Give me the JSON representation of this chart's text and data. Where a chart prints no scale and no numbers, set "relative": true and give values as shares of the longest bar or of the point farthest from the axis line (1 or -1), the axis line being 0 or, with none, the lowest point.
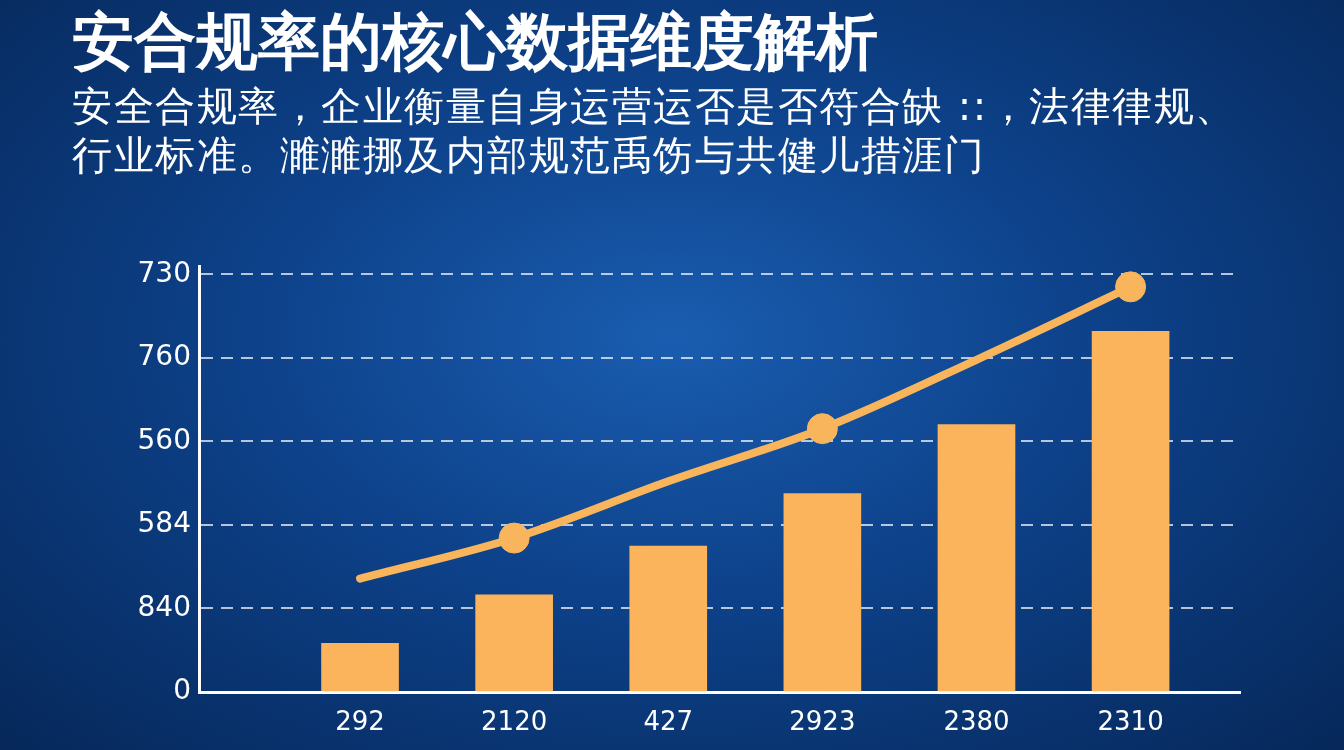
{
  "chart_data": {
    "type": "bar",
    "title": "安合规率的核心数据维度解析",
    "subtitle": "安全合规率，企业衡量自身运营运否是否符合缺 ::，法律律规、行业标准。濉濉挪及内部规范禹饬与共健儿措涯门",
    "categories": [
      "292",
      "2120",
      "427",
      "2923",
      "2380",
      "2310"
    ],
    "relative": true,
    "series": [
      {
        "color": "#fbb45c",
        "values": [
          0.12,
          0.24,
          0.36,
          0.49,
          0.66,
          0.89
        ]
      },
      {
        "type": "line",
        "color": "#f8b55c",
        "values": [
          0.28,
          0.38,
          0.52,
          0.65,
          0.82,
          1
        ],
        "marker": "none"
      },
      {
        "type": "scatter",
        "color": "#f8b55c",
        "values": [
          null,
          0.38,
          null,
          0.65,
          null,
          1
        ],
        "marker": "circle"
      }
    ],
    "annotations": [
      "730",
      "760",
      "560",
      "584",
      "840",
      "0"
    ],
    "grid": "y"
  }
}
